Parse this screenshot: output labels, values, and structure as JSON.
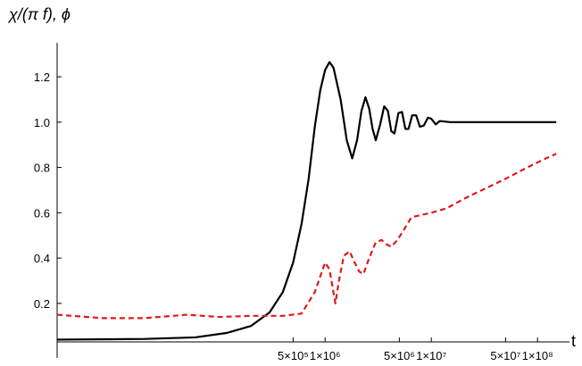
{
  "chart_data": {
    "type": "line",
    "ylabel": "χ/(π f), ϕ",
    "xlabel": "t",
    "x_scale": "log",
    "xlim": [
      3000,
      200000000
    ],
    "ylim": [
      0.03,
      1.35
    ],
    "y_ticks": [
      {
        "value": 0.2,
        "label": "0.2"
      },
      {
        "value": 0.4,
        "label": "0.4"
      },
      {
        "value": 0.6,
        "label": "0.6"
      },
      {
        "value": 0.8,
        "label": "0.8"
      },
      {
        "value": 1.0,
        "label": "1.0"
      },
      {
        "value": 1.2,
        "label": "1.2"
      }
    ],
    "x_ticks": [
      {
        "value": 500000,
        "label": "5×10⁵"
      },
      {
        "value": 1000000,
        "label": "1×10⁶"
      },
      {
        "value": 5000000,
        "label": "5×10⁶"
      },
      {
        "value": 10000000,
        "label": "1×10⁷"
      },
      {
        "value": 50000000,
        "label": "5×10⁷"
      },
      {
        "value": 100000000,
        "label": "1×10⁸"
      }
    ],
    "series": [
      {
        "color": "#000000",
        "style": "solid",
        "points": [
          [
            3000,
            0.04
          ],
          [
            20000,
            0.043
          ],
          [
            60000,
            0.05
          ],
          [
            120000,
            0.07
          ],
          [
            200000,
            0.1
          ],
          [
            300000,
            0.16
          ],
          [
            400000,
            0.25
          ],
          [
            500000,
            0.38
          ],
          [
            600000,
            0.55
          ],
          [
            700000,
            0.75
          ],
          [
            800000,
            0.98
          ],
          [
            900000,
            1.14
          ],
          [
            1000000,
            1.23
          ],
          [
            1100000,
            1.265
          ],
          [
            1200000,
            1.24
          ],
          [
            1400000,
            1.1
          ],
          [
            1600000,
            0.92
          ],
          [
            1800000,
            0.84
          ],
          [
            2000000,
            0.92
          ],
          [
            2200000,
            1.05
          ],
          [
            2400000,
            1.11
          ],
          [
            2600000,
            1.06
          ],
          [
            2800000,
            0.97
          ],
          [
            3000000,
            0.92
          ],
          [
            3300000,
            0.99
          ],
          [
            3600000,
            1.07
          ],
          [
            3900000,
            1.05
          ],
          [
            4200000,
            0.96
          ],
          [
            4500000,
            0.95
          ],
          [
            4900000,
            1.04
          ],
          [
            5300000,
            1.045
          ],
          [
            5700000,
            0.97
          ],
          [
            6100000,
            0.97
          ],
          [
            6600000,
            1.03
          ],
          [
            7200000,
            1.03
          ],
          [
            7800000,
            0.98
          ],
          [
            8500000,
            0.985
          ],
          [
            9300000,
            1.02
          ],
          [
            10000000,
            1.015
          ],
          [
            11000000,
            0.99
          ],
          [
            12000000,
            1.005
          ],
          [
            15000000,
            1.0
          ],
          [
            20000000,
            1.0
          ],
          [
            50000000,
            1.0
          ],
          [
            150000000,
            1.0
          ]
        ]
      },
      {
        "color": "#e0191b",
        "style": "dashed",
        "points": [
          [
            3000,
            0.15
          ],
          [
            8000,
            0.135
          ],
          [
            20000,
            0.135
          ],
          [
            50000,
            0.15
          ],
          [
            100000,
            0.14
          ],
          [
            200000,
            0.145
          ],
          [
            400000,
            0.145
          ],
          [
            600000,
            0.155
          ],
          [
            800000,
            0.25
          ],
          [
            1000000,
            0.38
          ],
          [
            1100000,
            0.35
          ],
          [
            1250000,
            0.2
          ],
          [
            1350000,
            0.3
          ],
          [
            1500000,
            0.41
          ],
          [
            1700000,
            0.43
          ],
          [
            1900000,
            0.38
          ],
          [
            2100000,
            0.34
          ],
          [
            2300000,
            0.33
          ],
          [
            2600000,
            0.4
          ],
          [
            3000000,
            0.47
          ],
          [
            3400000,
            0.48
          ],
          [
            3800000,
            0.46
          ],
          [
            4200000,
            0.45
          ],
          [
            4800000,
            0.48
          ],
          [
            5600000,
            0.53
          ],
          [
            6500000,
            0.58
          ],
          [
            8000000,
            0.59
          ],
          [
            10000000,
            0.6
          ],
          [
            14000000,
            0.62
          ],
          [
            20000000,
            0.66
          ],
          [
            30000000,
            0.7
          ],
          [
            50000000,
            0.75
          ],
          [
            80000000,
            0.8
          ],
          [
            120000000,
            0.84
          ],
          [
            150000000,
            0.86
          ]
        ]
      }
    ]
  }
}
